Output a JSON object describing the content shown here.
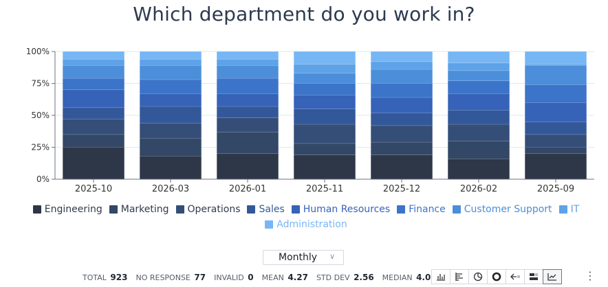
{
  "title": "Which department do you work in?",
  "chart_data": {
    "type": "bar",
    "stacked": "percent",
    "categories": [
      "2025-10",
      "2026-03",
      "2026-01",
      "2025-11",
      "2025-12",
      "2026-02",
      "2025-09"
    ],
    "ylim": [
      0,
      100
    ],
    "yticks": [
      "0%",
      "25%",
      "50%",
      "75%",
      "100%"
    ],
    "grid": true,
    "legend": "bottom",
    "series": [
      {
        "name": "Engineering",
        "color": "#2d3748",
        "values": [
          25,
          18,
          20,
          19,
          19,
          16,
          20
        ]
      },
      {
        "name": "Marketing",
        "color": "#334766",
        "values": [
          10,
          14,
          17,
          9,
          10,
          14,
          5
        ]
      },
      {
        "name": "Operations",
        "color": "#344e78",
        "values": [
          12,
          12,
          11,
          15,
          13,
          13,
          10
        ]
      },
      {
        "name": "Sales",
        "color": "#33589a",
        "values": [
          9,
          13,
          9,
          12,
          10,
          11,
          10
        ]
      },
      {
        "name": "Human Resources",
        "color": "#3663b7",
        "values": [
          14,
          10,
          10,
          11,
          12,
          13,
          15
        ]
      },
      {
        "name": "Finance",
        "color": "#3b74c9",
        "values": [
          9,
          11,
          12,
          9,
          11,
          10,
          14
        ]
      },
      {
        "name": "Customer Support",
        "color": "#4c8ed9",
        "values": [
          10,
          11,
          10,
          8,
          11,
          8,
          15
        ]
      },
      {
        "name": "IT",
        "color": "#5ea2e8",
        "values": [
          5,
          5,
          5,
          7,
          6,
          6,
          1
        ]
      },
      {
        "name": "Administration",
        "color": "#77b6f4",
        "values": [
          6,
          6,
          6,
          10,
          8,
          9,
          10
        ]
      }
    ]
  },
  "controls": {
    "period": "Monthly",
    "period_chevron": "∨"
  },
  "stats": [
    {
      "label": "TOTAL",
      "value": "923"
    },
    {
      "label": "NO RESPONSE",
      "value": "77"
    },
    {
      "label": "INVALID",
      "value": "0"
    },
    {
      "label": "MEAN",
      "value": "4.27"
    },
    {
      "label": "STD DEV",
      "value": "2.56"
    },
    {
      "label": "MEDIAN",
      "value": "4.00"
    }
  ],
  "toolbar": {
    "icons": [
      "bar-chart-icon",
      "horizontal-bar-icon",
      "pie-chart-icon",
      "donut-chart-icon",
      "back-arrow-icon",
      "stacked-icon",
      "line-chart-icon"
    ],
    "active": "line-chart-icon"
  },
  "more_label": "⋮"
}
